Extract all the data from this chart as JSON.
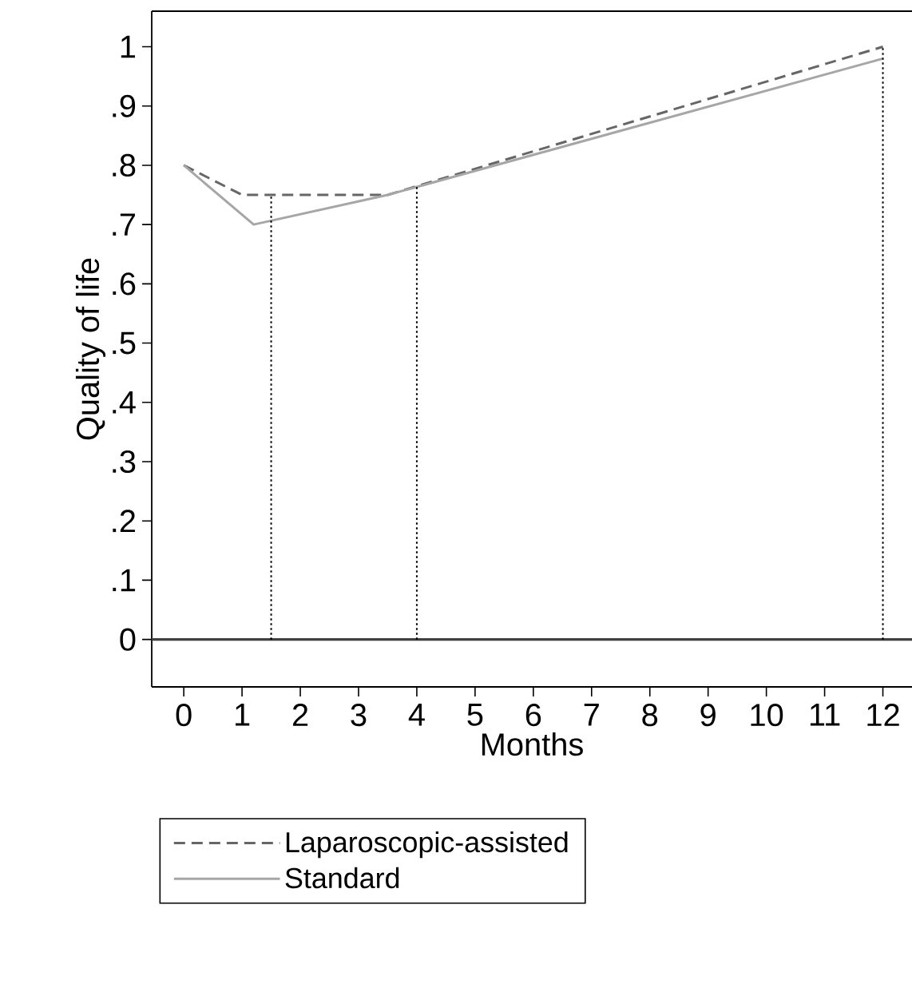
{
  "chart_data": {
    "type": "line",
    "xlabel": "Months",
    "ylabel": "Quality of life",
    "xlim": [
      -0.55,
      12.5
    ],
    "ylim": [
      -0.08,
      1.06
    ],
    "xticks": [
      0,
      1,
      2,
      3,
      4,
      5,
      6,
      7,
      8,
      9,
      10,
      11,
      12
    ],
    "yticks": [
      0,
      {
        "value": 0.1,
        "label": ".1"
      },
      {
        "value": 0.2,
        "label": ".2"
      },
      {
        "value": 0.3,
        "label": ".3"
      },
      {
        "value": 0.4,
        "label": ".4"
      },
      {
        "value": 0.5,
        "label": ".5"
      },
      {
        "value": 0.6,
        "label": ".6"
      },
      {
        "value": 0.7,
        "label": ".7"
      },
      {
        "value": 0.8,
        "label": ".8"
      },
      {
        "value": 0.9,
        "label": ".9"
      },
      1
    ],
    "legend": "bottom",
    "ref_lines": [
      {
        "axis": "y",
        "value": 0,
        "color": "#404040",
        "line_style": "solid"
      }
    ],
    "series": [
      {
        "name": "Laparoscopic-assisted",
        "color": "#666666",
        "line_style": "dashed",
        "x": [
          0,
          1,
          3.5,
          12
        ],
        "values": [
          0.8,
          0.75,
          0.75,
          1.0
        ]
      },
      {
        "name": "Standard",
        "color": "#a6a6a6",
        "line_style": "solid",
        "x": [
          0,
          1.2,
          3.5,
          12
        ],
        "values": [
          0.8,
          0.7,
          0.75,
          0.98
        ]
      },
      {
        "color": "#000000",
        "line_style": "dotted",
        "x": [
          1.5,
          1.5
        ],
        "values": [
          0,
          0.75
        ]
      },
      {
        "color": "#000000",
        "line_style": "dotted",
        "x": [
          4,
          4
        ],
        "values": [
          0,
          0.765
        ]
      },
      {
        "color": "#000000",
        "line_style": "dotted",
        "x": [
          12,
          12
        ],
        "values": [
          0,
          1.0
        ]
      }
    ]
  }
}
